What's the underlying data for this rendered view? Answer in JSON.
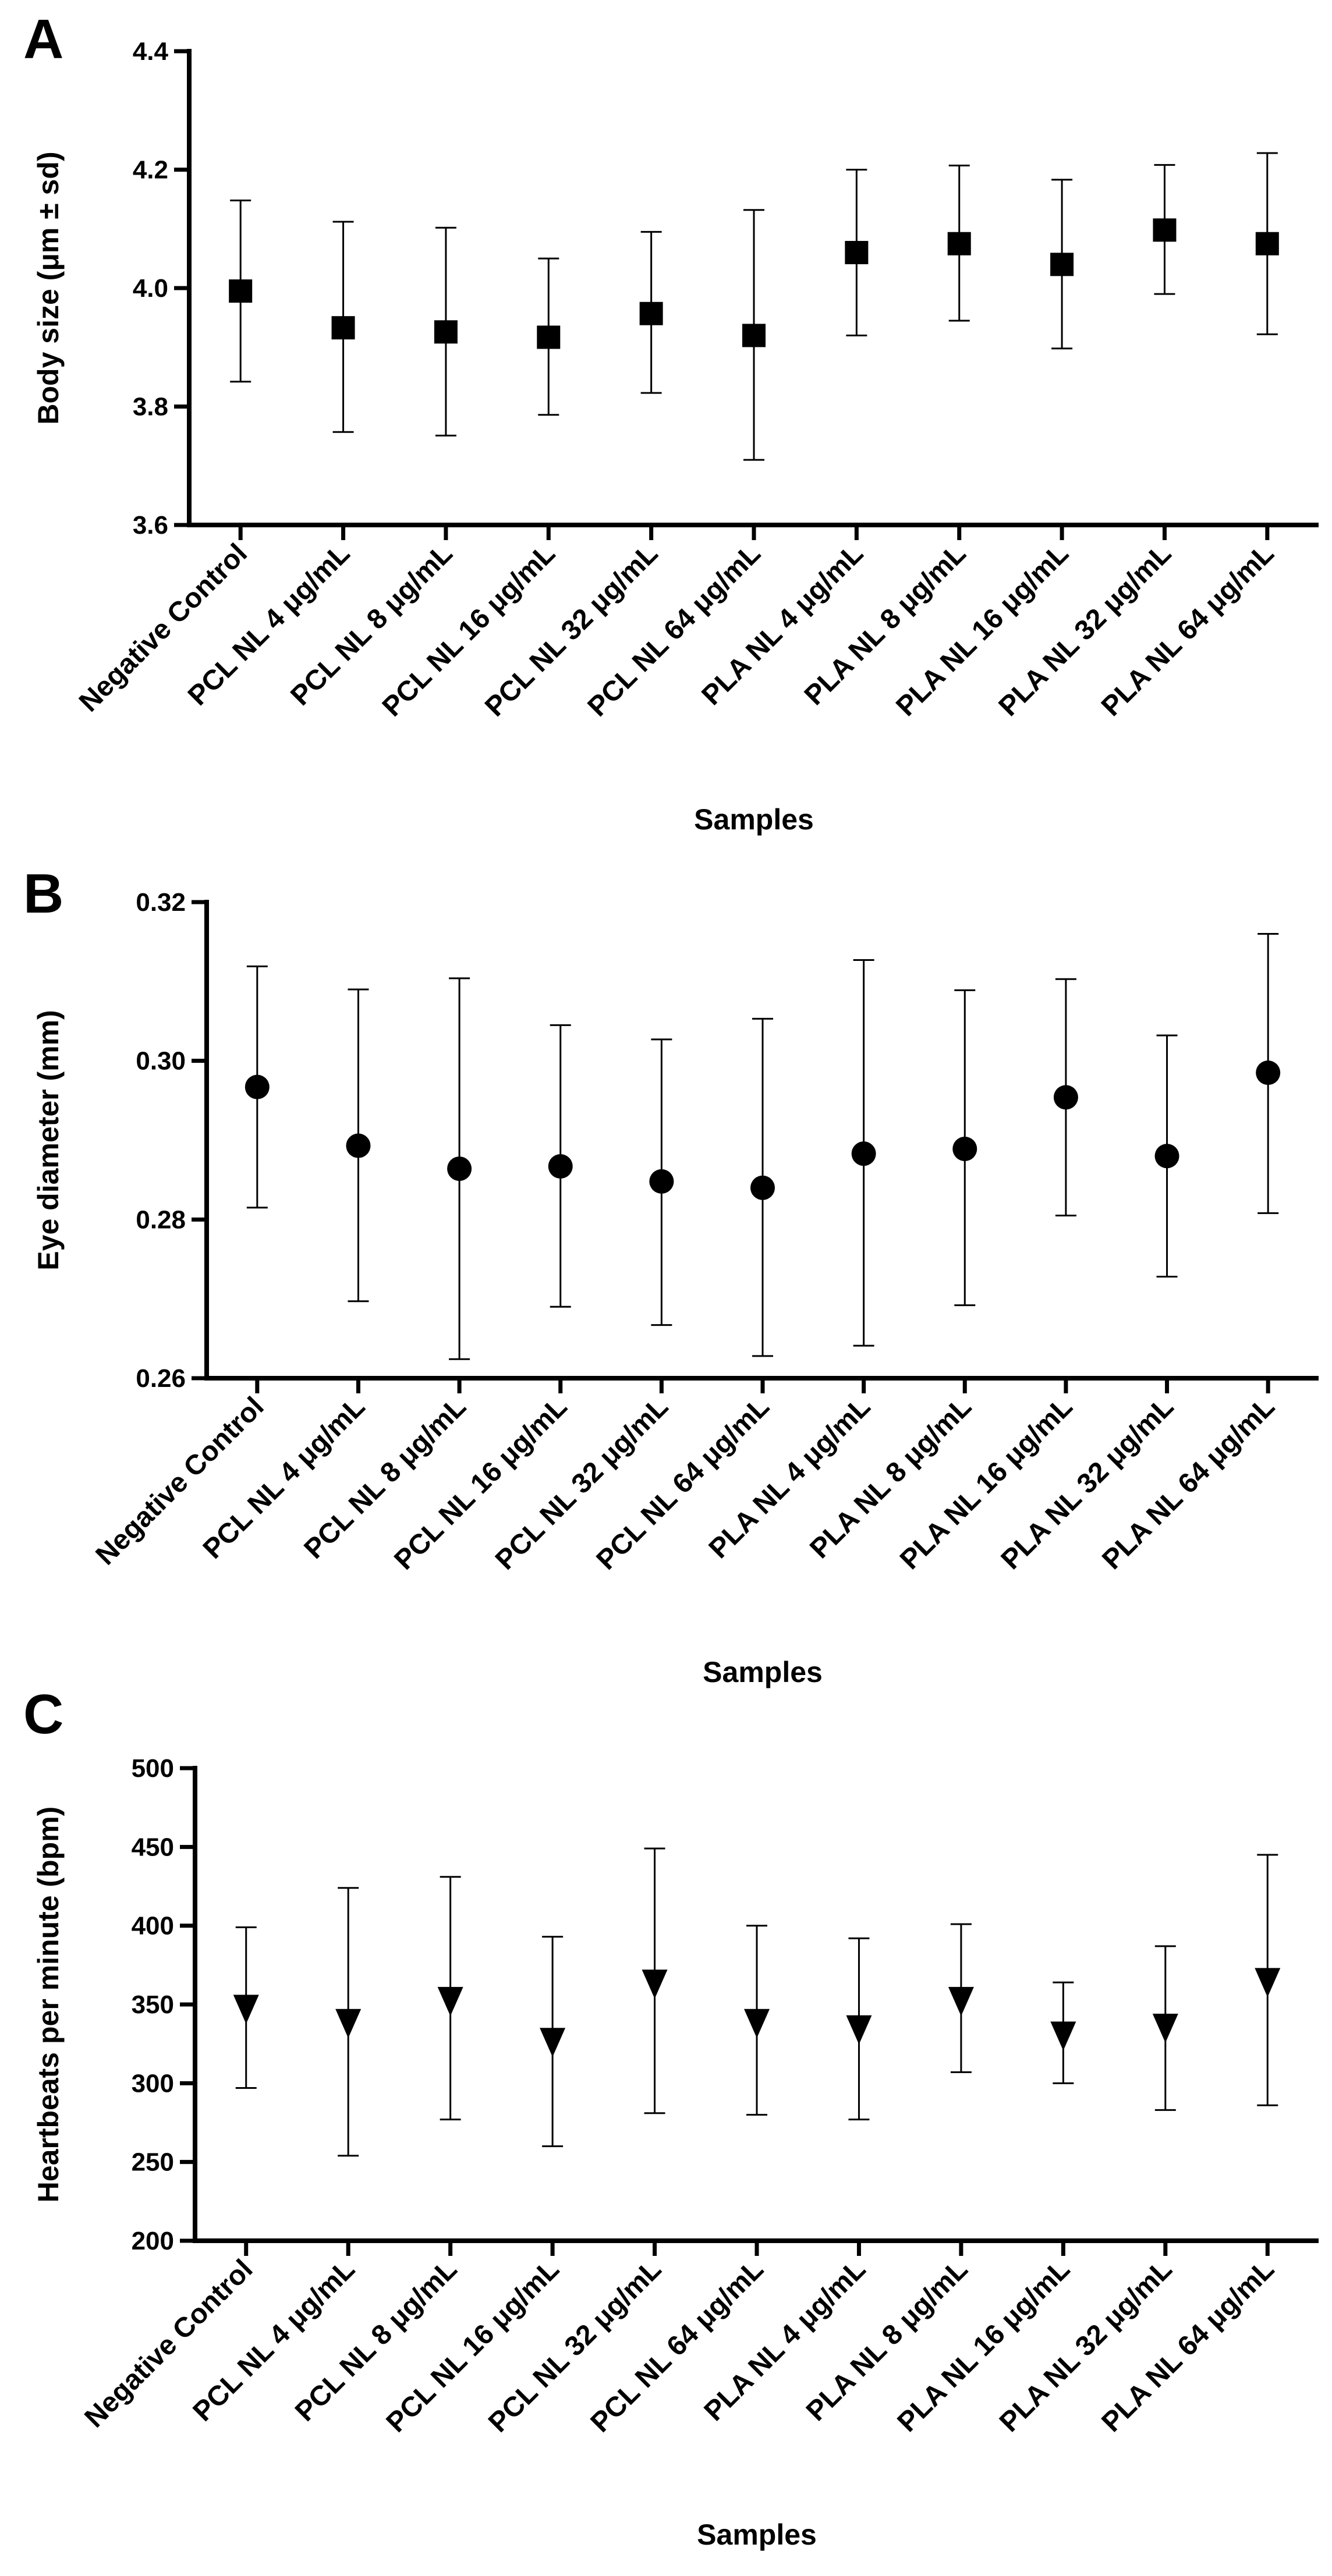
{
  "chart_data": [
    {
      "panel": "A",
      "type": "scatter",
      "marker": "square",
      "title": "",
      "xlabel": "Samples",
      "ylabel": "Body size (μm ± sd)",
      "ylim": [
        3.6,
        4.4
      ],
      "yticks": [
        "3.6",
        "3.8",
        "4.0",
        "4.2",
        "4.4"
      ],
      "categories": [
        "Negative Control",
        "PCL NL 4 μg/mL",
        "PCL NL 8 μg/mL",
        "PCL NL 16 μg/mL",
        "PCL NL 32 μg/mL",
        "PCL NL 64 μg/mL",
        "PLA NL 4 μg/mL",
        "PLA NL 8 μg/mL",
        "PLA NL 16 μg/mL",
        "PLA NL 32 μg/mL",
        "PLA NL 64 μg/mL"
      ],
      "values": [
        3.995,
        3.933,
        3.926,
        3.917,
        3.957,
        3.92,
        4.06,
        4.075,
        4.04,
        4.098,
        4.075
      ],
      "err_low": [
        3.842,
        3.757,
        3.751,
        3.786,
        3.823,
        3.71,
        3.92,
        3.945,
        3.898,
        3.99,
        3.922
      ],
      "err_high": [
        4.148,
        4.112,
        4.102,
        4.05,
        4.095,
        4.132,
        4.2,
        4.207,
        4.183,
        4.208,
        4.228
      ]
    },
    {
      "panel": "B",
      "type": "scatter",
      "marker": "circle",
      "title": "",
      "xlabel": "Samples",
      "ylabel": "Eye diameter (mm)",
      "ylim": [
        0.26,
        0.32
      ],
      "yticks": [
        "0.26",
        "0.28",
        "0.30",
        "0.32"
      ],
      "categories": [
        "Negative Control",
        "PCL NL 4 μg/mL",
        "PCL NL 8 μg/mL",
        "PCL NL 16 μg/mL",
        "PCL NL 32 μg/mL",
        "PCL NL 64 μg/mL",
        "PLA NL 4 μg/mL",
        "PLA NL 8 μg/mL",
        "PLA NL 16 μg/mL",
        "PLA NL 32 μg/mL",
        "PLA NL 64 μg/mL"
      ],
      "values": [
        0.2967,
        0.2893,
        0.2864,
        0.2867,
        0.2848,
        0.284,
        0.2883,
        0.2889,
        0.2954,
        0.288,
        0.2985
      ],
      "err_low": [
        0.2815,
        0.2697,
        0.2624,
        0.269,
        0.2667,
        0.2628,
        0.2641,
        0.2692,
        0.2805,
        0.2728,
        0.2808
      ],
      "err_high": [
        0.3119,
        0.309,
        0.3104,
        0.3045,
        0.3027,
        0.3053,
        0.3127,
        0.3089,
        0.3103,
        0.3032,
        0.316
      ]
    },
    {
      "panel": "C",
      "type": "scatter",
      "marker": "triangle-down",
      "title": "",
      "xlabel": "Samples",
      "ylabel": "Heartbeats per minute (bpm)",
      "ylim": [
        200,
        500
      ],
      "yticks": [
        "200",
        "250",
        "300",
        "350",
        "400",
        "450",
        "500"
      ],
      "categories": [
        "Negative Control",
        "PCL NL 4 μg/mL",
        "PCL NL 8 μg/mL",
        "PCL NL 16 μg/mL",
        "PCL NL 32 μg/mL",
        "PCL NL 64 μg/mL",
        "PLA NL 4 μg/mL",
        "PLA NL 8 μg/mL",
        "PLA NL 16 μg/mL",
        "PLA NL 32 μg/mL",
        "PLA NL 64 μg/mL"
      ],
      "values": [
        348,
        339,
        353,
        327,
        364,
        339,
        335,
        353,
        331,
        336,
        365
      ],
      "err_low": [
        297,
        254,
        277,
        260,
        281,
        280,
        277,
        307,
        300,
        283,
        286
      ],
      "err_high": [
        399,
        424,
        431,
        393,
        449,
        400,
        392,
        401,
        364,
        387,
        445
      ]
    }
  ]
}
